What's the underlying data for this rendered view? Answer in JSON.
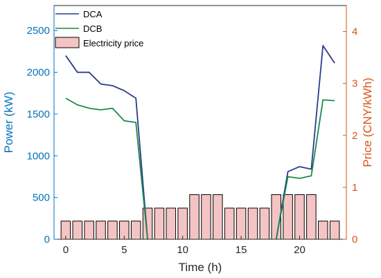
{
  "chart_data": {
    "type": "bar+line",
    "title": "",
    "xlabel": "Time (h)",
    "ylabel_left": "Power (kW)",
    "ylabel_right": "Price (CNY/kWh)",
    "xlim": [
      -1,
      24
    ],
    "ylim_left": [
      0,
      2800
    ],
    "ylim_right": [
      0,
      4.5
    ],
    "xticks": [
      0,
      5,
      10,
      15,
      20
    ],
    "yticks_left": [
      0,
      500,
      1000,
      1500,
      2000,
      2500
    ],
    "yticks_right": [
      0,
      1,
      2,
      3,
      4
    ],
    "x": [
      0,
      1,
      2,
      3,
      4,
      5,
      6,
      7,
      8,
      9,
      10,
      11,
      12,
      13,
      14,
      15,
      16,
      17,
      18,
      19,
      20,
      21,
      22,
      23
    ],
    "series": [
      {
        "name": "DCA",
        "type": "line",
        "axis": "left",
        "color": "#2b3a8c",
        "values": [
          2200,
          2000,
          2000,
          1860,
          1840,
          1780,
          1690,
          0,
          null,
          null,
          null,
          null,
          null,
          null,
          null,
          null,
          null,
          null,
          0,
          810,
          870,
          840,
          2320,
          2110
        ]
      },
      {
        "name": "DCB",
        "type": "line",
        "axis": "left",
        "color": "#1a8a4a",
        "values": [
          1690,
          1610,
          1570,
          1550,
          1570,
          1420,
          1400,
          0,
          null,
          null,
          null,
          null,
          null,
          null,
          null,
          null,
          null,
          null,
          0,
          750,
          730,
          760,
          1670,
          1660
        ]
      },
      {
        "name": "Electricity price",
        "type": "bar",
        "axis": "right",
        "color": "#f4c4c4",
        "edge_color": "#000000",
        "values": [
          0.35,
          0.35,
          0.35,
          0.35,
          0.35,
          0.35,
          0.35,
          0.6,
          0.6,
          0.6,
          0.6,
          0.86,
          0.86,
          0.86,
          0.6,
          0.6,
          0.6,
          0.6,
          0.86,
          0.86,
          0.86,
          0.86,
          0.35,
          0.35
        ]
      }
    ],
    "left_axis_color": "#0072bd",
    "right_axis_color": "#d95319",
    "legend_position": "top-left",
    "grid": false
  }
}
